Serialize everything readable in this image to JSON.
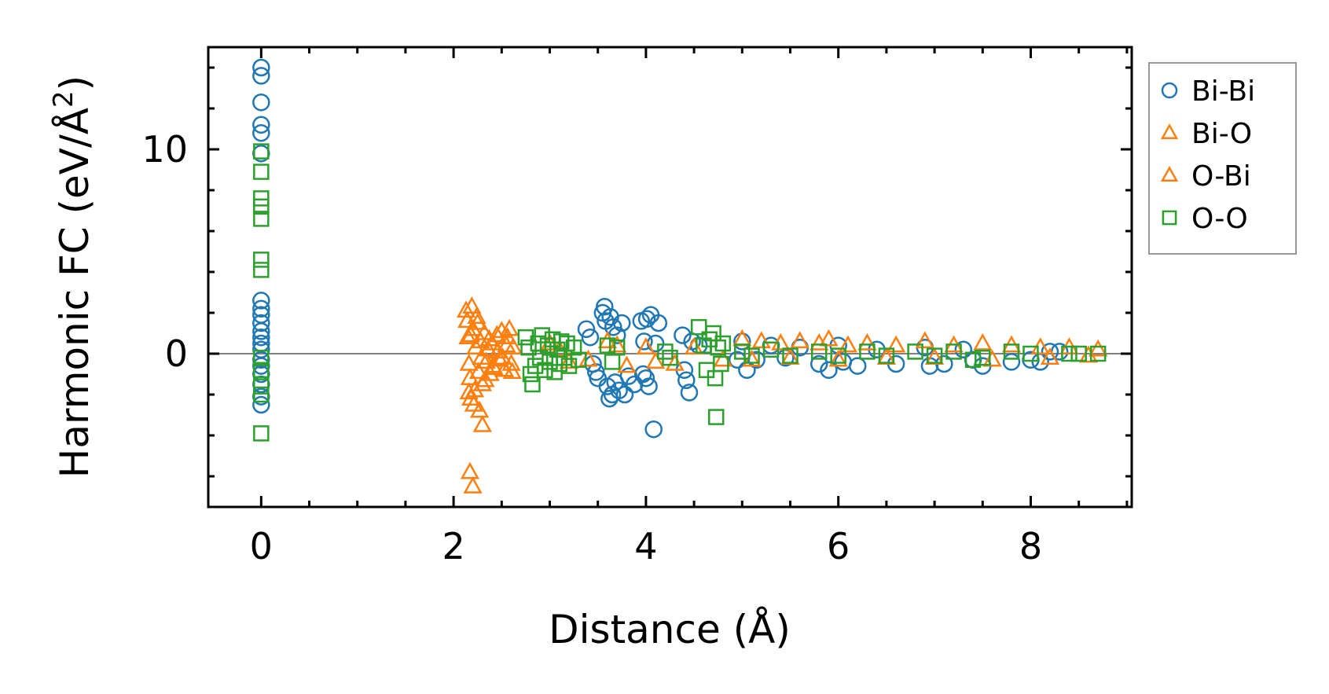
{
  "chart_data": {
    "type": "scatter",
    "title": "",
    "xlabel": "Distance (Å)",
    "ylabel_main": "Harmonic FC (eV/Å",
    "ylabel_sup": "2",
    "ylabel_close": ")",
    "xlim": [
      -0.55,
      9.05
    ],
    "ylim": [
      -7.5,
      15.0
    ],
    "xticks": [
      0,
      2,
      4,
      6,
      8
    ],
    "xtick_labels": [
      "0",
      "2",
      "4",
      "6",
      "8"
    ],
    "yticks": [
      0,
      10
    ],
    "ytick_labels": [
      "0",
      "10"
    ],
    "x_minor_step": 0.5,
    "y_minor_step": 2,
    "zero_line": true,
    "grid": false,
    "legend_position": "outside-right-top",
    "series": [
      {
        "name": "Bi-Bi",
        "marker": "circle",
        "color": "#1f77b4",
        "points": [
          [
            0,
            14.0
          ],
          [
            0,
            13.6
          ],
          [
            0,
            12.3
          ],
          [
            0,
            11.2
          ],
          [
            0,
            10.8
          ],
          [
            0,
            9.8
          ],
          [
            0,
            2.6
          ],
          [
            0,
            2.2
          ],
          [
            0,
            1.9
          ],
          [
            0,
            1.5
          ],
          [
            0,
            1.1
          ],
          [
            0,
            0.8
          ],
          [
            0,
            0.5
          ],
          [
            0,
            0.2
          ],
          [
            0,
            -0.3
          ],
          [
            0,
            -0.6
          ],
          [
            0,
            -1.0
          ],
          [
            0,
            -1.5
          ],
          [
            0,
            -2.1
          ],
          [
            0,
            -2.5
          ],
          [
            3.38,
            1.2
          ],
          [
            3.42,
            0.8
          ],
          [
            3.45,
            -0.5
          ],
          [
            3.48,
            -0.9
          ],
          [
            3.5,
            -1.2
          ],
          [
            3.55,
            2.0
          ],
          [
            3.57,
            2.3
          ],
          [
            3.58,
            1.6
          ],
          [
            3.6,
            -1.6
          ],
          [
            3.62,
            -2.2
          ],
          [
            3.63,
            1.8
          ],
          [
            3.65,
            -2.0
          ],
          [
            3.66,
            1.3
          ],
          [
            3.68,
            -1.4
          ],
          [
            3.7,
            0.9
          ],
          [
            3.72,
            -1.8
          ],
          [
            3.75,
            1.5
          ],
          [
            3.78,
            -2.0
          ],
          [
            3.82,
            -1.1
          ],
          [
            3.88,
            -1.5
          ],
          [
            3.95,
            1.6
          ],
          [
            3.97,
            -1.0
          ],
          [
            3.98,
            0.6
          ],
          [
            4.0,
            -1.2
          ],
          [
            4.01,
            1.7
          ],
          [
            4.03,
            -1.6
          ],
          [
            4.05,
            1.9
          ],
          [
            4.08,
            -3.7
          ],
          [
            4.1,
            0.5
          ],
          [
            4.13,
            1.5
          ],
          [
            4.38,
            0.9
          ],
          [
            4.4,
            -0.8
          ],
          [
            4.42,
            -1.3
          ],
          [
            4.45,
            -1.9
          ],
          [
            4.48,
            0.6
          ],
          [
            4.55,
            0.4
          ],
          [
            4.95,
            -0.3
          ],
          [
            5.0,
            0.6
          ],
          [
            5.05,
            -0.8
          ],
          [
            5.15,
            -0.3
          ],
          [
            5.3,
            0.4
          ],
          [
            5.45,
            -0.2
          ],
          [
            5.6,
            0.3
          ],
          [
            5.8,
            -0.5
          ],
          [
            5.9,
            -0.8
          ],
          [
            6.0,
            0.4
          ],
          [
            6.05,
            -0.4
          ],
          [
            6.2,
            -0.6
          ],
          [
            6.4,
            0.2
          ],
          [
            6.6,
            -0.5
          ],
          [
            6.9,
            0.3
          ],
          [
            6.95,
            -0.6
          ],
          [
            7.1,
            -0.5
          ],
          [
            7.3,
            0.2
          ],
          [
            7.4,
            -0.3
          ],
          [
            7.5,
            -0.6
          ],
          [
            7.8,
            -0.4
          ],
          [
            8.0,
            -0.3
          ],
          [
            8.1,
            -0.4
          ],
          [
            8.2,
            0.1
          ],
          [
            8.3,
            0.1
          ]
        ]
      },
      {
        "name": "Bi-O",
        "marker": "triangle",
        "color": "#ff7f0e",
        "points": [
          [
            2.13,
            2.1
          ],
          [
            2.14,
            1.6
          ],
          [
            2.15,
            0.8
          ],
          [
            2.16,
            -0.5
          ],
          [
            2.17,
            -1.2
          ],
          [
            2.17,
            -5.8
          ],
          [
            2.18,
            -2.2
          ],
          [
            2.19,
            2.3
          ],
          [
            2.2,
            1.2
          ],
          [
            2.2,
            -6.5
          ],
          [
            2.22,
            -1.8
          ],
          [
            2.23,
            0.3
          ],
          [
            2.25,
            1.5
          ],
          [
            2.26,
            -0.9
          ],
          [
            2.27,
            -2.8
          ],
          [
            2.28,
            0.6
          ],
          [
            2.3,
            -3.5
          ],
          [
            2.3,
            -1.5
          ],
          [
            2.32,
            1.0
          ],
          [
            2.34,
            -0.4
          ],
          [
            2.36,
            0.2
          ],
          [
            2.38,
            -1.0
          ],
          [
            2.4,
            0.5
          ],
          [
            2.42,
            -0.7
          ],
          [
            2.45,
            0.9
          ],
          [
            2.48,
            -0.3
          ],
          [
            2.5,
            1.1
          ],
          [
            2.53,
            -0.8
          ],
          [
            2.55,
            0.4
          ],
          [
            2.58,
            1.2
          ],
          [
            2.6,
            -0.5
          ],
          [
            2.62,
            0.3
          ],
          [
            3.0,
            0.5
          ],
          [
            3.2,
            -0.4
          ],
          [
            3.6,
            0.6
          ],
          [
            3.8,
            -0.6
          ],
          [
            4.0,
            0.3
          ],
          [
            4.3,
            -0.5
          ],
          [
            5.0,
            0.7
          ],
          [
            5.2,
            0.6
          ],
          [
            5.4,
            0.5
          ],
          [
            5.6,
            0.6
          ],
          [
            5.8,
            0.5
          ],
          [
            5.9,
            0.7
          ],
          [
            6.1,
            0.4
          ],
          [
            6.3,
            0.5
          ],
          [
            6.6,
            0.4
          ],
          [
            6.9,
            0.6
          ],
          [
            7.2,
            0.4
          ],
          [
            7.5,
            0.5
          ],
          [
            7.8,
            0.4
          ],
          [
            8.1,
            0.3
          ],
          [
            8.4,
            0.3
          ],
          [
            8.7,
            0.2
          ]
        ]
      },
      {
        "name": "O-Bi",
        "marker": "triangle",
        "color": "#ff7f0e",
        "points": [
          [
            2.16,
            -1.9
          ],
          [
            2.18,
            0.9
          ],
          [
            2.21,
            -2.5
          ],
          [
            2.24,
            1.8
          ],
          [
            2.29,
            -0.2
          ],
          [
            2.33,
            -1.3
          ],
          [
            2.37,
            0.7
          ],
          [
            2.41,
            -0.6
          ],
          [
            2.46,
            0.1
          ],
          [
            2.51,
            -0.2
          ],
          [
            2.56,
            0.8
          ],
          [
            2.61,
            -0.9
          ],
          [
            3.1,
            0.2
          ],
          [
            3.4,
            -0.3
          ],
          [
            3.7,
            0.4
          ],
          [
            4.1,
            -0.4
          ],
          [
            4.5,
            0.3
          ],
          [
            4.8,
            -0.3
          ],
          [
            5.1,
            -0.3
          ],
          [
            5.5,
            -0.2
          ],
          [
            6.0,
            -0.3
          ],
          [
            6.5,
            -0.2
          ],
          [
            7.0,
            -0.2
          ],
          [
            7.6,
            -0.3
          ],
          [
            8.2,
            -0.2
          ],
          [
            8.6,
            -0.1
          ]
        ]
      },
      {
        "name": "O-O",
        "marker": "square",
        "color": "#2ca02c",
        "points": [
          [
            0,
            9.9
          ],
          [
            0,
            8.9
          ],
          [
            0,
            7.6
          ],
          [
            0,
            7.2
          ],
          [
            0,
            6.6
          ],
          [
            0,
            4.6
          ],
          [
            0,
            4.1
          ],
          [
            0,
            -0.2
          ],
          [
            0,
            -0.8
          ],
          [
            0,
            -1.6
          ],
          [
            0,
            -2.0
          ],
          [
            0,
            -3.9
          ],
          [
            2.75,
            0.8
          ],
          [
            2.78,
            0.3
          ],
          [
            2.8,
            -1.0
          ],
          [
            2.82,
            -1.5
          ],
          [
            2.85,
            -0.6
          ],
          [
            2.88,
            0.5
          ],
          [
            2.9,
            -0.2
          ],
          [
            2.92,
            0.9
          ],
          [
            2.95,
            -0.8
          ],
          [
            2.98,
            0.4
          ],
          [
            3.0,
            -0.4
          ],
          [
            3.03,
            0.7
          ],
          [
            3.05,
            -0.9
          ],
          [
            3.08,
            0.2
          ],
          [
            3.1,
            -0.5
          ],
          [
            3.12,
            0.6
          ],
          [
            3.15,
            -0.2
          ],
          [
            3.18,
            0.5
          ],
          [
            3.2,
            -0.6
          ],
          [
            3.25,
            0.3
          ],
          [
            3.3,
            -0.3
          ],
          [
            3.6,
            0.4
          ],
          [
            3.65,
            -0.4
          ],
          [
            3.7,
            0.3
          ],
          [
            4.2,
            0.1
          ],
          [
            4.25,
            -0.2
          ],
          [
            4.55,
            1.3
          ],
          [
            4.6,
            0.4
          ],
          [
            4.63,
            -0.8
          ],
          [
            4.66,
            0.7
          ],
          [
            4.7,
            1.0
          ],
          [
            4.72,
            -1.2
          ],
          [
            4.73,
            -3.1
          ],
          [
            4.75,
            0.3
          ],
          [
            4.78,
            -0.5
          ],
          [
            4.8,
            0.5
          ],
          [
            5.0,
            0.1
          ],
          [
            5.1,
            -0.1
          ],
          [
            5.3,
            0.2
          ],
          [
            5.5,
            -0.1
          ],
          [
            5.8,
            0.1
          ],
          [
            6.0,
            -0.1
          ],
          [
            6.3,
            0.1
          ],
          [
            6.5,
            -0.1
          ],
          [
            6.8,
            0.1
          ],
          [
            7.0,
            -0.1
          ],
          [
            7.2,
            0.1
          ],
          [
            7.4,
            -0.3
          ],
          [
            7.5,
            -0.2
          ],
          [
            7.8,
            0.1
          ],
          [
            8.0,
            0.0
          ],
          [
            8.4,
            0.0
          ],
          [
            8.5,
            0.0
          ],
          [
            8.7,
            0.0
          ]
        ]
      }
    ]
  }
}
